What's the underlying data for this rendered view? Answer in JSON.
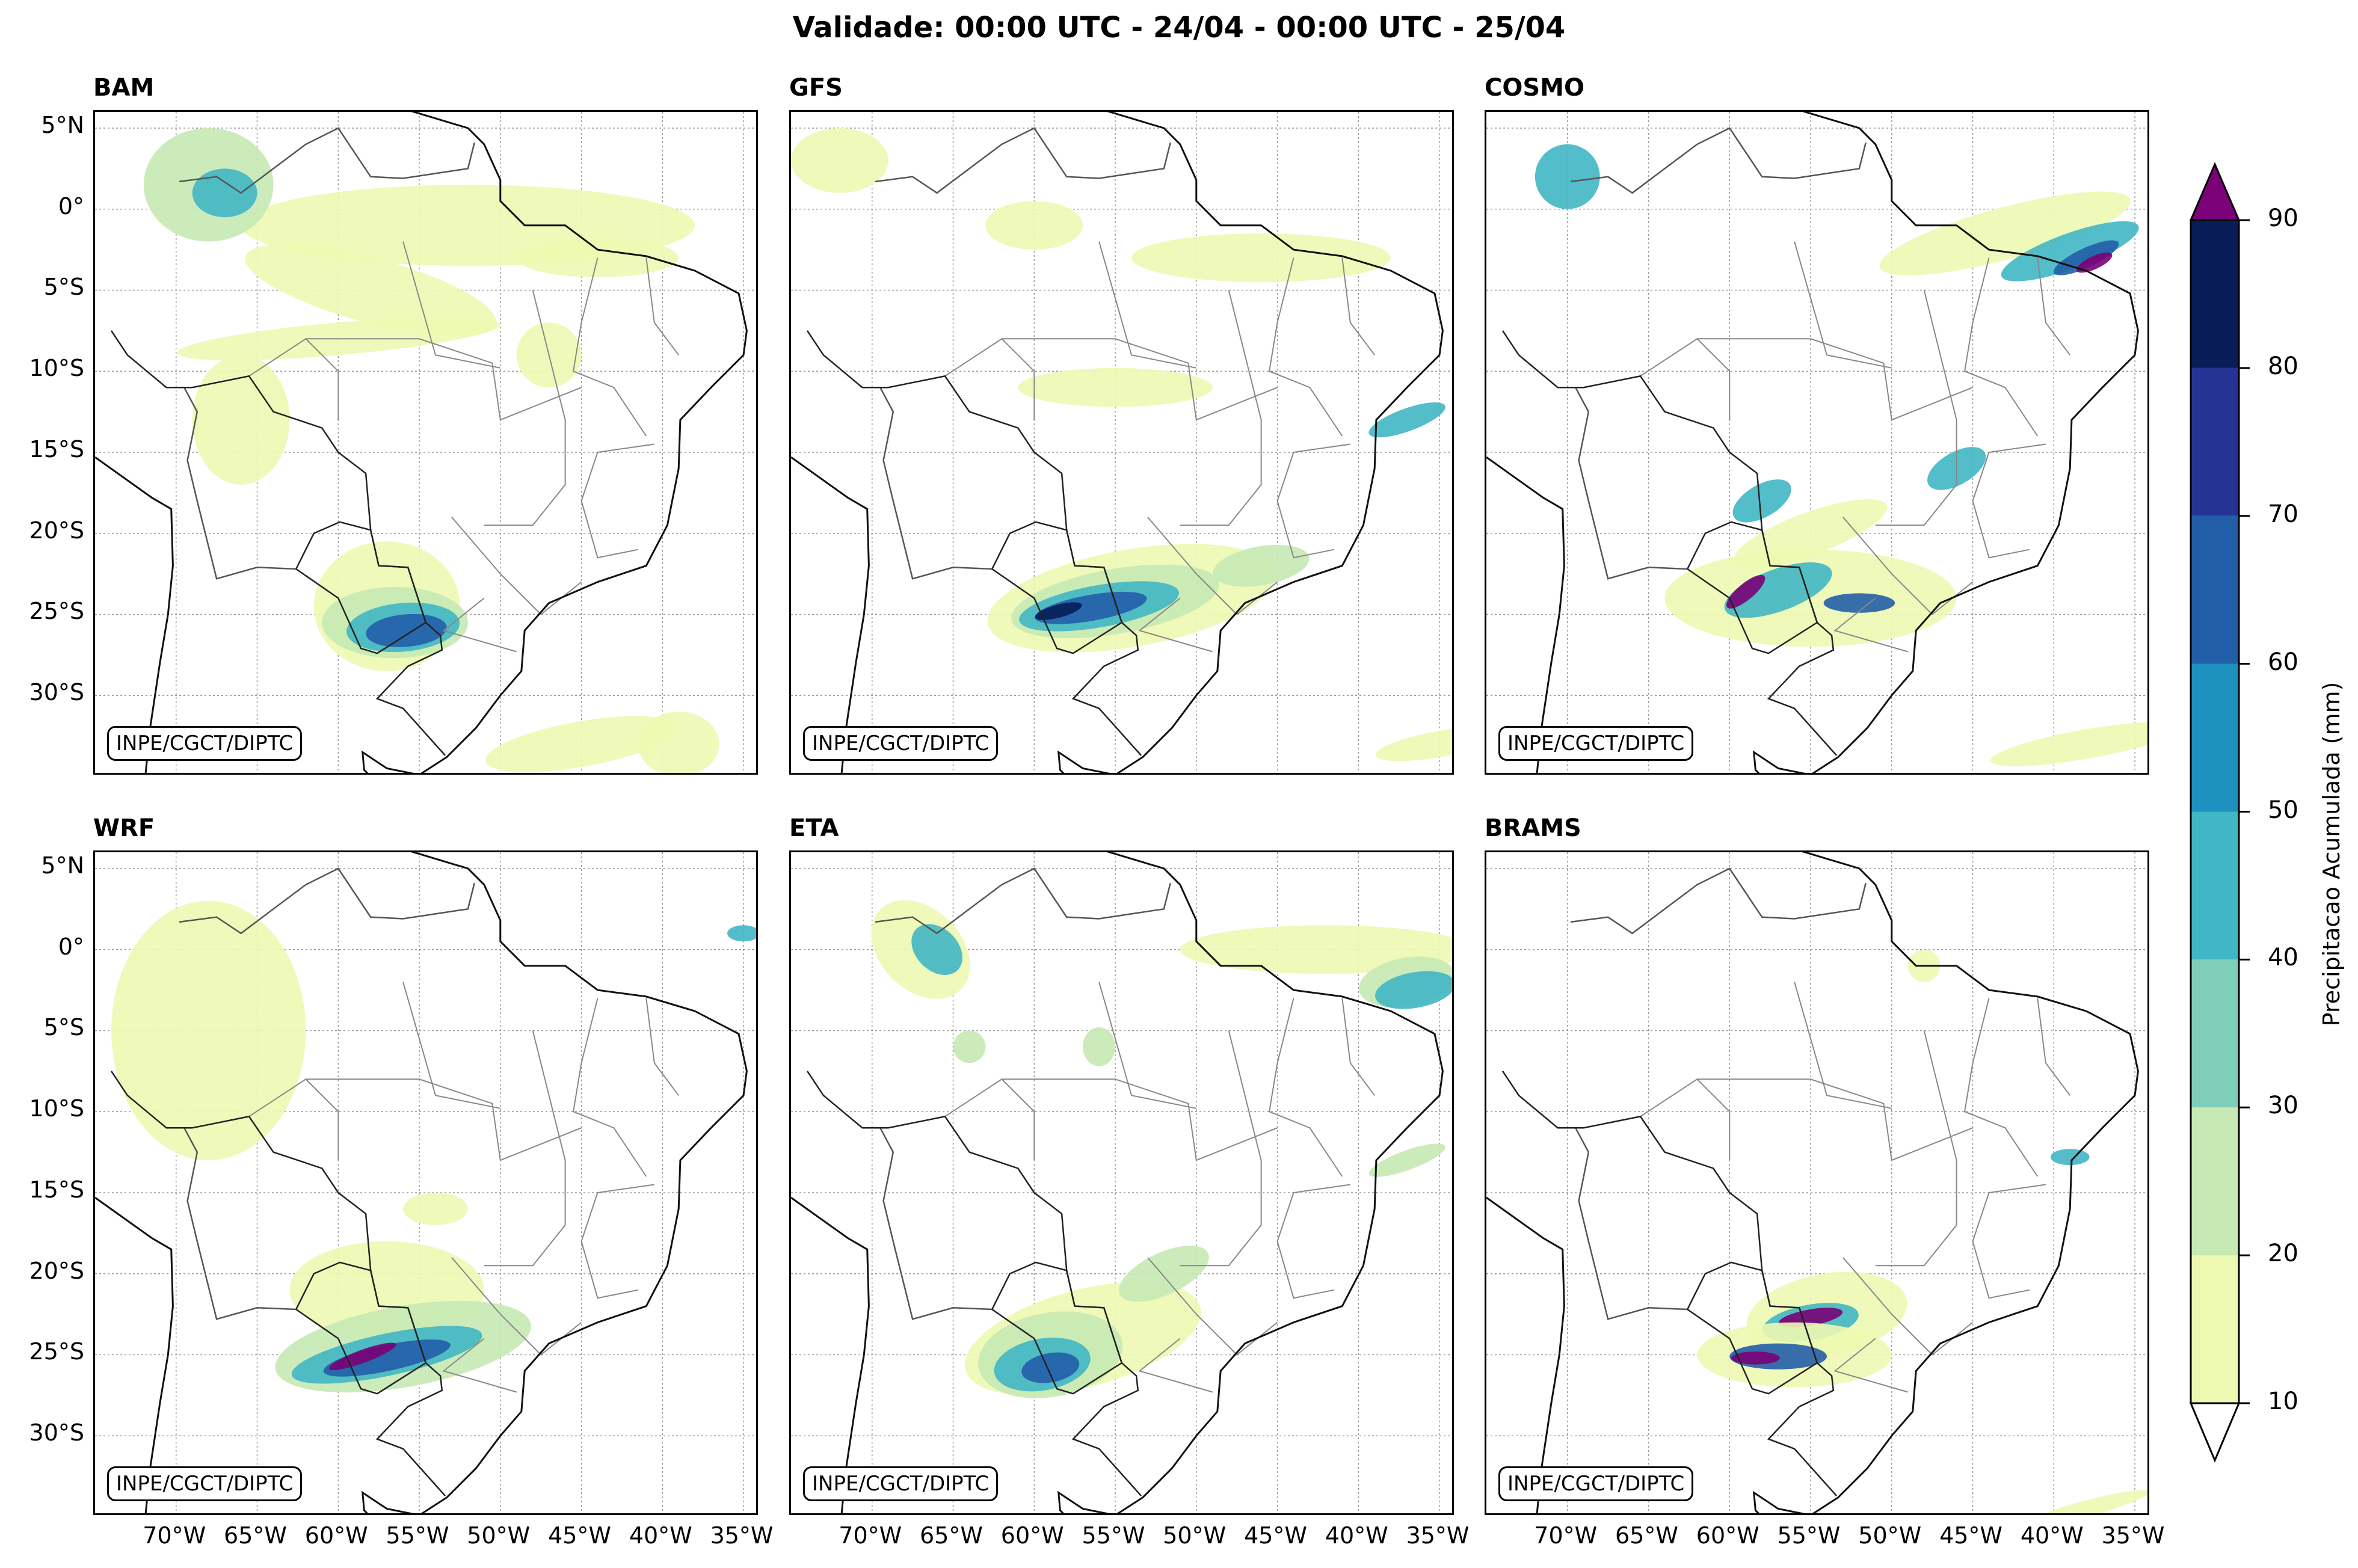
{
  "title": "Validade: 00:00 UTC - 24/04 - 00:00 UTC - 25/04",
  "credit": "INPE/CGCT/DIPTC",
  "colorbar": {
    "label": "Precipitacao Acumulada (mm)",
    "ticks": [
      "10",
      "20",
      "30",
      "40",
      "50",
      "60",
      "70",
      "80",
      "90"
    ],
    "colors": [
      "#edf8b1",
      "#c7e9b4",
      "#7fcdbb",
      "#41b6c4",
      "#1d91c0",
      "#225ea8",
      "#253494",
      "#081d58"
    ],
    "over_color": "#7a0177",
    "under_color": "#ffffff"
  },
  "lat_labels": [
    "5°N",
    "0°",
    "5°S",
    "10°S",
    "15°S",
    "20°S",
    "25°S",
    "30°S"
  ],
  "lon_labels": [
    "70°W",
    "65°W",
    "60°W",
    "55°W",
    "50°W",
    "45°W",
    "40°W",
    "35°W"
  ],
  "panels": [
    {
      "name": "BAM"
    },
    {
      "name": "GFS"
    },
    {
      "name": "COSMO"
    },
    {
      "name": "WRF"
    },
    {
      "name": "ETA"
    },
    {
      "name": "BRAMS"
    }
  ]
}
